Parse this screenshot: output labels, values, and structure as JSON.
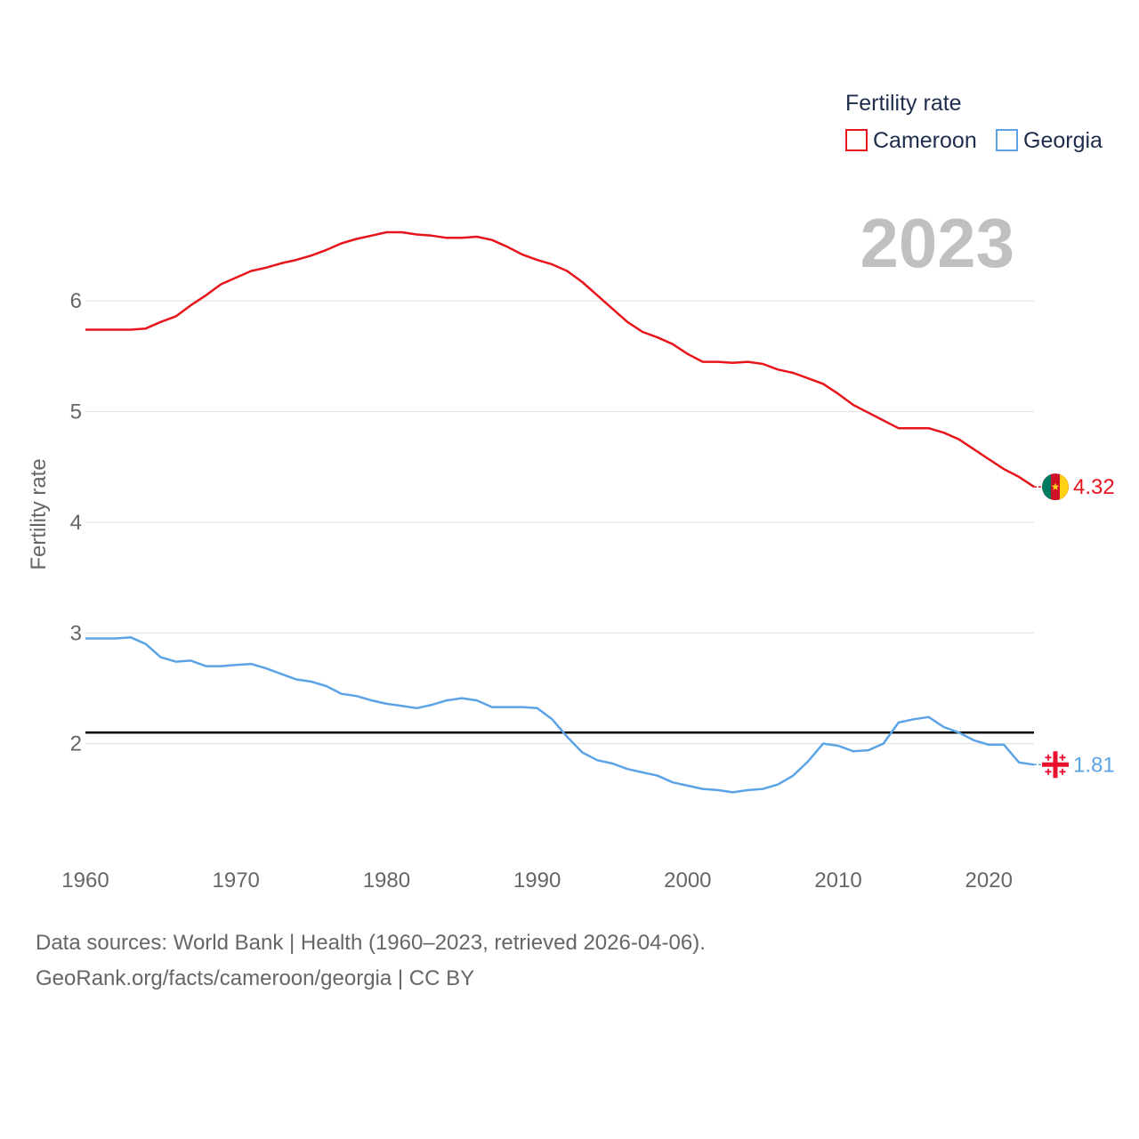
{
  "chart_data": {
    "type": "line",
    "year_label": "2023",
    "ylabel": "Fertility rate",
    "ylim": [
      1.0,
      6.95
    ],
    "xlim": [
      1960,
      2023
    ],
    "x_ticks": [
      1960,
      1970,
      1980,
      1990,
      2000,
      2010,
      2020
    ],
    "y_ticks": [
      2,
      3,
      4,
      5,
      6
    ],
    "reference_line": 2.1,
    "legend": {
      "title": "Fertility rate",
      "placement": "top-right"
    },
    "x": [
      1960,
      1961,
      1962,
      1963,
      1964,
      1965,
      1966,
      1967,
      1968,
      1969,
      1970,
      1971,
      1972,
      1973,
      1974,
      1975,
      1976,
      1977,
      1978,
      1979,
      1980,
      1981,
      1982,
      1983,
      1984,
      1985,
      1986,
      1987,
      1988,
      1989,
      1990,
      1991,
      1992,
      1993,
      1994,
      1995,
      1996,
      1997,
      1998,
      1999,
      2000,
      2001,
      2002,
      2003,
      2004,
      2005,
      2006,
      2007,
      2008,
      2009,
      2010,
      2011,
      2012,
      2013,
      2014,
      2015,
      2016,
      2017,
      2018,
      2019,
      2020,
      2021,
      2022,
      2023
    ],
    "series": [
      {
        "name": "Cameroon",
        "color": "#e8141c",
        "end_label": "4.32",
        "values": [
          5.74,
          5.74,
          5.74,
          5.74,
          5.75,
          5.81,
          5.86,
          5.96,
          6.05,
          6.15,
          6.21,
          6.27,
          6.3,
          6.34,
          6.37,
          6.41,
          6.46,
          6.52,
          6.56,
          6.59,
          6.62,
          6.62,
          6.6,
          6.59,
          6.57,
          6.57,
          6.58,
          6.55,
          6.49,
          6.42,
          6.37,
          6.33,
          6.27,
          6.17,
          6.05,
          5.93,
          5.81,
          5.72,
          5.67,
          5.61,
          5.52,
          5.45,
          5.45,
          5.44,
          5.45,
          5.43,
          5.38,
          5.35,
          5.3,
          5.25,
          5.16,
          5.06,
          4.99,
          4.92,
          4.85,
          4.85,
          4.85,
          4.81,
          4.75,
          4.66,
          4.57,
          4.48,
          4.41,
          4.32
        ]
      },
      {
        "name": "Georgia",
        "color": "#5ba3e6",
        "end_label": "1.81",
        "values": [
          2.95,
          2.95,
          2.95,
          2.96,
          2.9,
          2.78,
          2.74,
          2.75,
          2.7,
          2.7,
          2.71,
          2.72,
          2.68,
          2.63,
          2.58,
          2.56,
          2.52,
          2.45,
          2.43,
          2.39,
          2.36,
          2.34,
          2.32,
          2.35,
          2.39,
          2.41,
          2.39,
          2.33,
          2.33,
          2.33,
          2.32,
          2.22,
          2.06,
          1.92,
          1.85,
          1.82,
          1.77,
          1.74,
          1.71,
          1.65,
          1.62,
          1.59,
          1.58,
          1.56,
          1.58,
          1.59,
          1.63,
          1.71,
          1.84,
          2.0,
          1.98,
          1.93,
          1.94,
          2.0,
          2.19,
          2.22,
          2.24,
          2.15,
          2.1,
          2.03,
          1.99,
          1.99,
          1.83,
          1.81
        ]
      }
    ]
  },
  "source": {
    "line1": "Data sources: World Bank | Health (1960–2023, retrieved 2026-04-06).",
    "line2": "GeoRank.org/facts/cameroon/georgia | CC BY"
  }
}
